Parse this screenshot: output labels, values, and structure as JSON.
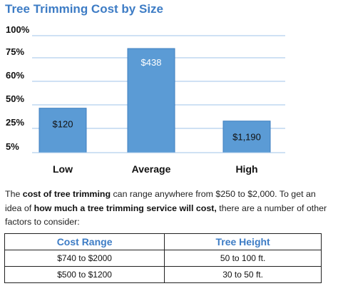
{
  "chart_data": {
    "type": "bar",
    "title": "Tree Trimming Cost by Size",
    "categories": [
      "Low",
      "Average",
      "High"
    ],
    "values": [
      38,
      89,
      27
    ],
    "data_labels": [
      "$120",
      "$438",
      "$1,190"
    ],
    "ytick_labels": [
      "100%",
      "75%",
      "60%",
      "50%",
      "25%",
      "5%"
    ],
    "grid": true,
    "bar_color": "#5b9bd5",
    "xlabel": "",
    "ylabel": ""
  },
  "intro": {
    "p1": "The ",
    "b1": "cost of tree trimming",
    "p2": " can range anywhere from $250 to $2,000. To get an idea of ",
    "b2": "how much a tree trimming service will cost,",
    "p3": " there are a number of other factors to consider:"
  },
  "table": {
    "headers": [
      "Cost Range",
      "Tree Height"
    ],
    "rows": [
      [
        "$740 to $2000",
        "50 to 100 ft."
      ],
      [
        "$500 to $1200",
        "30 to 50 ft."
      ]
    ]
  }
}
